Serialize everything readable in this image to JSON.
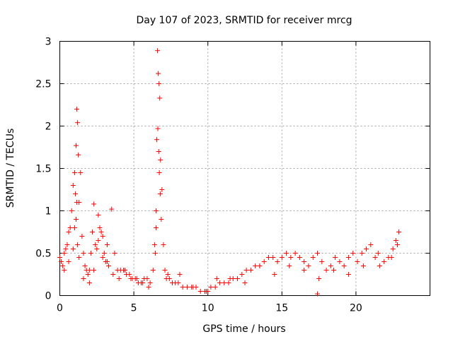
{
  "chart_data": {
    "type": "scatter",
    "title": "Day 107 of 2023, SRMTID for receiver mrcg",
    "xlabel": "GPS time / hours",
    "ylabel": "SRMTID / TECUs",
    "xlim": [
      0,
      25
    ],
    "ylim": [
      0,
      3
    ],
    "x_ticks": [
      0,
      5,
      10,
      15,
      20
    ],
    "y_ticks": [
      0,
      0.5,
      1,
      1.5,
      2,
      2.5,
      3
    ],
    "x_tick_labels": [
      "0",
      "5",
      "10",
      "15",
      "20"
    ],
    "y_tick_labels": [
      "0",
      "0.5",
      "1",
      "1.5",
      "2",
      "2.5",
      "3"
    ],
    "grid": true,
    "marker": "+",
    "color": "#ff0000",
    "series": [
      {
        "name": "SRMTID",
        "x": [
          0.0,
          0.1,
          0.2,
          0.3,
          0.4,
          0.5,
          0.6,
          0.7,
          0.8,
          0.9,
          1.0,
          1.05,
          1.1,
          1.15,
          1.2,
          1.25,
          1.3,
          1.4,
          1.5,
          1.6,
          1.7,
          1.8,
          1.9,
          2.0,
          2.1,
          2.2,
          2.3,
          2.4,
          2.5,
          2.6,
          2.7,
          2.8,
          2.9,
          3.0,
          3.1,
          3.2,
          3.3,
          3.5,
          3.7,
          3.9,
          4.1,
          4.3,
          4.5,
          4.7,
          4.9,
          5.1,
          5.3,
          5.5,
          5.7,
          5.9,
          6.1,
          6.3,
          6.4,
          6.5,
          6.55,
          6.6,
          6.65,
          6.7,
          6.75,
          6.8,
          6.9,
          7.0,
          7.1,
          7.2,
          7.4,
          7.6,
          7.8,
          8.0,
          8.3,
          8.6,
          8.9,
          9.2,
          9.5,
          9.8,
          10.0,
          10.2,
          10.5,
          10.8,
          11.1,
          11.4,
          11.7,
          12.0,
          12.3,
          12.6,
          12.9,
          13.2,
          13.5,
          13.8,
          14.1,
          14.4,
          14.7,
          15.0,
          15.3,
          15.6,
          15.9,
          16.2,
          16.5,
          16.8,
          17.1,
          17.4,
          17.7,
          18.0,
          18.3,
          18.6,
          18.9,
          19.2,
          19.5,
          19.8,
          20.1,
          20.4,
          20.7,
          21.0,
          21.3,
          21.6,
          21.9,
          22.2,
          22.5,
          22.7,
          22.9,
          0.3,
          0.6,
          0.9,
          1.0,
          1.1,
          1.15,
          1.2,
          1.3,
          1.6,
          2.0,
          2.3,
          2.6,
          2.9,
          3.2,
          3.6,
          4.0,
          4.4,
          4.8,
          5.2,
          5.6,
          6.0,
          6.45,
          6.5,
          6.62,
          6.68,
          6.72,
          6.78,
          6.85,
          7.3,
          8.1,
          9.0,
          9.9,
          10.6,
          11.5,
          12.5,
          13.5,
          14.5,
          15.5,
          16.5,
          17.5,
          18.5,
          19.5,
          20.5,
          21.5,
          22.4,
          22.8,
          17.4
        ],
        "y": [
          0.45,
          0.4,
          0.35,
          0.5,
          0.55,
          0.6,
          0.75,
          0.8,
          1.0,
          1.3,
          1.45,
          1.2,
          1.77,
          2.2,
          2.04,
          1.66,
          1.1,
          1.45,
          0.7,
          0.5,
          0.35,
          0.3,
          0.25,
          0.3,
          0.5,
          0.75,
          1.08,
          0.6,
          0.55,
          0.65,
          0.8,
          0.75,
          0.7,
          0.5,
          0.4,
          0.4,
          0.35,
          1.02,
          0.5,
          0.3,
          0.3,
          0.3,
          0.25,
          0.25,
          0.2,
          0.2,
          0.15,
          0.15,
          0.2,
          0.2,
          0.15,
          0.3,
          0.6,
          1.0,
          1.84,
          2.89,
          2.62,
          2.5,
          2.33,
          1.6,
          1.25,
          0.6,
          0.3,
          0.2,
          0.2,
          0.15,
          0.15,
          0.15,
          0.1,
          0.1,
          0.1,
          0.1,
          0.05,
          0.05,
          0.05,
          0.1,
          0.1,
          0.15,
          0.15,
          0.15,
          0.2,
          0.2,
          0.25,
          0.3,
          0.3,
          0.35,
          0.35,
          0.4,
          0.45,
          0.45,
          0.4,
          0.45,
          0.5,
          0.45,
          0.5,
          0.45,
          0.4,
          0.35,
          0.45,
          0.5,
          0.4,
          0.3,
          0.35,
          0.45,
          0.4,
          0.35,
          0.45,
          0.5,
          0.4,
          0.5,
          0.55,
          0.6,
          0.45,
          0.35,
          0.4,
          0.45,
          0.55,
          0.65,
          0.75,
          0.3,
          0.4,
          0.55,
          0.8,
          0.9,
          1.1,
          0.6,
          0.45,
          0.2,
          0.15,
          0.3,
          0.95,
          0.45,
          0.6,
          0.25,
          0.2,
          0.3,
          0.2,
          0.2,
          0.15,
          0.1,
          0.5,
          0.8,
          1.97,
          1.7,
          1.45,
          1.2,
          0.9,
          0.25,
          0.25,
          0.1,
          0.05,
          0.2,
          0.2,
          0.15,
          0.35,
          0.25,
          0.35,
          0.3,
          0.2,
          0.3,
          0.25,
          0.35,
          0.5,
          0.45,
          0.6,
          0.02
        ]
      }
    ]
  }
}
